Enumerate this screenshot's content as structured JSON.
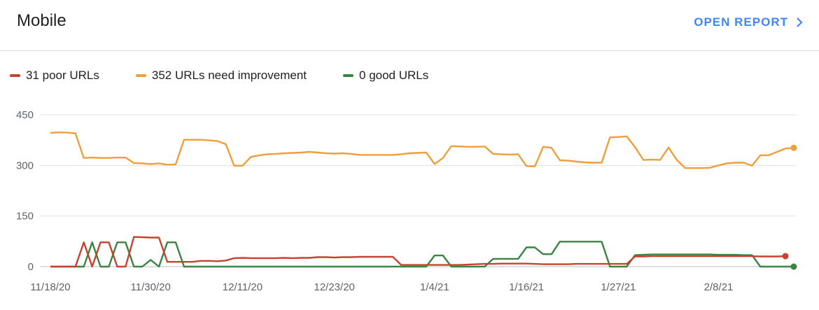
{
  "header": {
    "title": "Mobile",
    "open_report_label": "OPEN REPORT"
  },
  "legend": [
    {
      "label": "31 poor URLs",
      "color": "#c5432f"
    },
    {
      "label": "352 URLs need improvement",
      "color": "#f09e3c"
    },
    {
      "label": "0 good URLs",
      "color": "#3a8442"
    }
  ],
  "icons": {
    "open_report": "chevron-right-icon"
  },
  "chart_data": {
    "type": "line",
    "x_label_positions": [
      0,
      12,
      23,
      34,
      46,
      57,
      68,
      80
    ],
    "x_tick_labels": [
      "11/18/20",
      "11/30/20",
      "12/11/20",
      "12/23/20",
      "1/4/21",
      "1/16/21",
      "1/27/21",
      "2/8/21"
    ],
    "y_ticks": [
      0,
      150,
      300,
      450
    ],
    "ylim": [
      0,
      450
    ],
    "xlim": [
      0,
      88
    ],
    "grid": true,
    "legend_position": "top-left",
    "series": [
      {
        "name": "31 poor URLs",
        "color": "#c5432f",
        "points": [
          [
            0,
            0
          ],
          [
            3,
            0
          ],
          [
            4,
            72
          ],
          [
            5,
            0
          ],
          [
            6,
            72
          ],
          [
            7,
            72
          ],
          [
            8,
            0
          ],
          [
            9,
            0
          ],
          [
            10,
            88
          ],
          [
            11,
            87
          ],
          [
            12,
            86
          ],
          [
            13,
            86
          ],
          [
            14,
            14
          ],
          [
            15,
            14
          ],
          [
            16,
            14
          ],
          [
            17,
            14
          ],
          [
            18,
            17
          ],
          [
            19,
            17
          ],
          [
            20,
            16
          ],
          [
            21,
            18
          ],
          [
            22,
            25
          ],
          [
            23,
            26
          ],
          [
            24,
            25
          ],
          [
            25,
            25
          ],
          [
            26,
            25
          ],
          [
            27,
            25
          ],
          [
            28,
            26
          ],
          [
            29,
            25
          ],
          [
            30,
            26
          ],
          [
            31,
            26
          ],
          [
            32,
            28
          ],
          [
            33,
            28
          ],
          [
            34,
            27
          ],
          [
            35,
            28
          ],
          [
            36,
            28
          ],
          [
            37,
            29
          ],
          [
            38,
            29
          ],
          [
            39,
            29
          ],
          [
            40,
            29
          ],
          [
            41,
            29
          ],
          [
            42,
            5
          ],
          [
            43,
            5
          ],
          [
            44,
            5
          ],
          [
            45,
            5
          ],
          [
            46,
            5
          ],
          [
            47,
            5
          ],
          [
            48,
            5
          ],
          [
            49,
            5
          ],
          [
            50,
            6
          ],
          [
            51,
            7
          ],
          [
            52,
            8
          ],
          [
            53,
            8
          ],
          [
            54,
            9
          ],
          [
            55,
            9
          ],
          [
            56,
            9
          ],
          [
            57,
            9
          ],
          [
            58,
            8
          ],
          [
            59,
            7
          ],
          [
            60,
            7
          ],
          [
            61,
            7
          ],
          [
            62,
            7
          ],
          [
            63,
            8
          ],
          [
            64,
            8
          ],
          [
            65,
            8
          ],
          [
            66,
            8
          ],
          [
            67,
            8
          ],
          [
            68,
            8
          ],
          [
            69,
            8
          ],
          [
            70,
            30
          ],
          [
            71,
            30
          ],
          [
            72,
            31
          ],
          [
            73,
            31
          ],
          [
            74,
            31
          ],
          [
            75,
            31
          ],
          [
            76,
            31
          ],
          [
            77,
            31
          ],
          [
            78,
            31
          ],
          [
            79,
            31
          ],
          [
            80,
            31
          ],
          [
            81,
            31
          ],
          [
            82,
            31
          ],
          [
            83,
            31
          ],
          [
            84,
            31
          ],
          [
            85,
            30
          ],
          [
            86,
            30
          ],
          [
            87,
            30
          ],
          [
            88,
            31
          ]
        ]
      },
      {
        "name": "352 URLs need improvement",
        "color": "#f09e3c",
        "points": [
          [
            0,
            396
          ],
          [
            1,
            398
          ],
          [
            2,
            397
          ],
          [
            3,
            395
          ],
          [
            4,
            322
          ],
          [
            5,
            323
          ],
          [
            6,
            322
          ],
          [
            7,
            322
          ],
          [
            8,
            323
          ],
          [
            9,
            323
          ],
          [
            10,
            307
          ],
          [
            11,
            306
          ],
          [
            12,
            304
          ],
          [
            13,
            306
          ],
          [
            14,
            302
          ],
          [
            15,
            303
          ],
          [
            16,
            376
          ],
          [
            17,
            376
          ],
          [
            18,
            376
          ],
          [
            19,
            374
          ],
          [
            20,
            372
          ],
          [
            21,
            363
          ],
          [
            22,
            299
          ],
          [
            23,
            299
          ],
          [
            24,
            325
          ],
          [
            25,
            330
          ],
          [
            26,
            333
          ],
          [
            27,
            334
          ],
          [
            28,
            336
          ],
          [
            29,
            337
          ],
          [
            30,
            338
          ],
          [
            31,
            340
          ],
          [
            32,
            338
          ],
          [
            33,
            336
          ],
          [
            34,
            335
          ],
          [
            35,
            336
          ],
          [
            36,
            334
          ],
          [
            37,
            331
          ],
          [
            38,
            331
          ],
          [
            39,
            331
          ],
          [
            40,
            331
          ],
          [
            41,
            331
          ],
          [
            42,
            333
          ],
          [
            43,
            336
          ],
          [
            44,
            337
          ],
          [
            45,
            338
          ],
          [
            46,
            304
          ],
          [
            47,
            322
          ],
          [
            48,
            357
          ],
          [
            49,
            356
          ],
          [
            50,
            355
          ],
          [
            51,
            355
          ],
          [
            52,
            356
          ],
          [
            53,
            334
          ],
          [
            54,
            333
          ],
          [
            55,
            332
          ],
          [
            56,
            333
          ],
          [
            57,
            298
          ],
          [
            58,
            297
          ],
          [
            59,
            355
          ],
          [
            60,
            352
          ],
          [
            61,
            315
          ],
          [
            62,
            314
          ],
          [
            63,
            311
          ],
          [
            64,
            309
          ],
          [
            65,
            308
          ],
          [
            66,
            308
          ],
          [
            67,
            383
          ],
          [
            68,
            384
          ],
          [
            69,
            386
          ],
          [
            70,
            354
          ],
          [
            71,
            316
          ],
          [
            72,
            317
          ],
          [
            73,
            316
          ],
          [
            74,
            353
          ],
          [
            75,
            316
          ],
          [
            76,
            292
          ],
          [
            77,
            292
          ],
          [
            78,
            292
          ],
          [
            79,
            293
          ],
          [
            80,
            300
          ],
          [
            81,
            306
          ],
          [
            82,
            308
          ],
          [
            83,
            308
          ],
          [
            84,
            299
          ],
          [
            85,
            330
          ],
          [
            86,
            330
          ],
          [
            87,
            340
          ],
          [
            88,
            350
          ],
          [
            89,
            352
          ]
        ]
      },
      {
        "name": "0 good URLs",
        "color": "#3a8442",
        "points": [
          [
            0,
            0
          ],
          [
            3,
            0
          ],
          [
            4,
            0
          ],
          [
            5,
            72
          ],
          [
            6,
            0
          ],
          [
            7,
            0
          ],
          [
            8,
            72
          ],
          [
            9,
            72
          ],
          [
            10,
            0
          ],
          [
            11,
            0
          ],
          [
            12,
            20
          ],
          [
            13,
            0
          ],
          [
            14,
            72
          ],
          [
            15,
            72
          ],
          [
            16,
            0
          ],
          [
            17,
            0
          ],
          [
            18,
            0
          ],
          [
            19,
            0
          ],
          [
            20,
            0
          ],
          [
            21,
            0
          ],
          [
            22,
            0
          ],
          [
            23,
            0
          ],
          [
            24,
            0
          ],
          [
            25,
            0
          ],
          [
            26,
            0
          ],
          [
            27,
            0
          ],
          [
            28,
            0
          ],
          [
            29,
            0
          ],
          [
            30,
            0
          ],
          [
            31,
            0
          ],
          [
            32,
            0
          ],
          [
            33,
            0
          ],
          [
            34,
            0
          ],
          [
            35,
            0
          ],
          [
            36,
            0
          ],
          [
            37,
            0
          ],
          [
            38,
            0
          ],
          [
            39,
            0
          ],
          [
            40,
            0
          ],
          [
            41,
            0
          ],
          [
            42,
            0
          ],
          [
            43,
            0
          ],
          [
            44,
            0
          ],
          [
            45,
            0
          ],
          [
            46,
            33
          ],
          [
            47,
            33
          ],
          [
            48,
            0
          ],
          [
            49,
            0
          ],
          [
            50,
            0
          ],
          [
            51,
            0
          ],
          [
            52,
            0
          ],
          [
            53,
            23
          ],
          [
            54,
            23
          ],
          [
            55,
            23
          ],
          [
            56,
            23
          ],
          [
            57,
            57
          ],
          [
            58,
            57
          ],
          [
            59,
            37
          ],
          [
            60,
            37
          ],
          [
            61,
            74
          ],
          [
            62,
            74
          ],
          [
            63,
            74
          ],
          [
            64,
            74
          ],
          [
            65,
            74
          ],
          [
            66,
            74
          ],
          [
            67,
            0
          ],
          [
            68,
            0
          ],
          [
            69,
            0
          ],
          [
            70,
            34
          ],
          [
            71,
            35
          ],
          [
            72,
            36
          ],
          [
            73,
            36
          ],
          [
            74,
            36
          ],
          [
            75,
            36
          ],
          [
            76,
            36
          ],
          [
            77,
            36
          ],
          [
            78,
            36
          ],
          [
            79,
            36
          ],
          [
            80,
            35
          ],
          [
            81,
            35
          ],
          [
            82,
            35
          ],
          [
            83,
            34
          ],
          [
            84,
            34
          ],
          [
            85,
            0
          ],
          [
            86,
            0
          ],
          [
            87,
            0
          ],
          [
            88,
            0
          ],
          [
            89,
            0
          ]
        ]
      }
    ]
  }
}
